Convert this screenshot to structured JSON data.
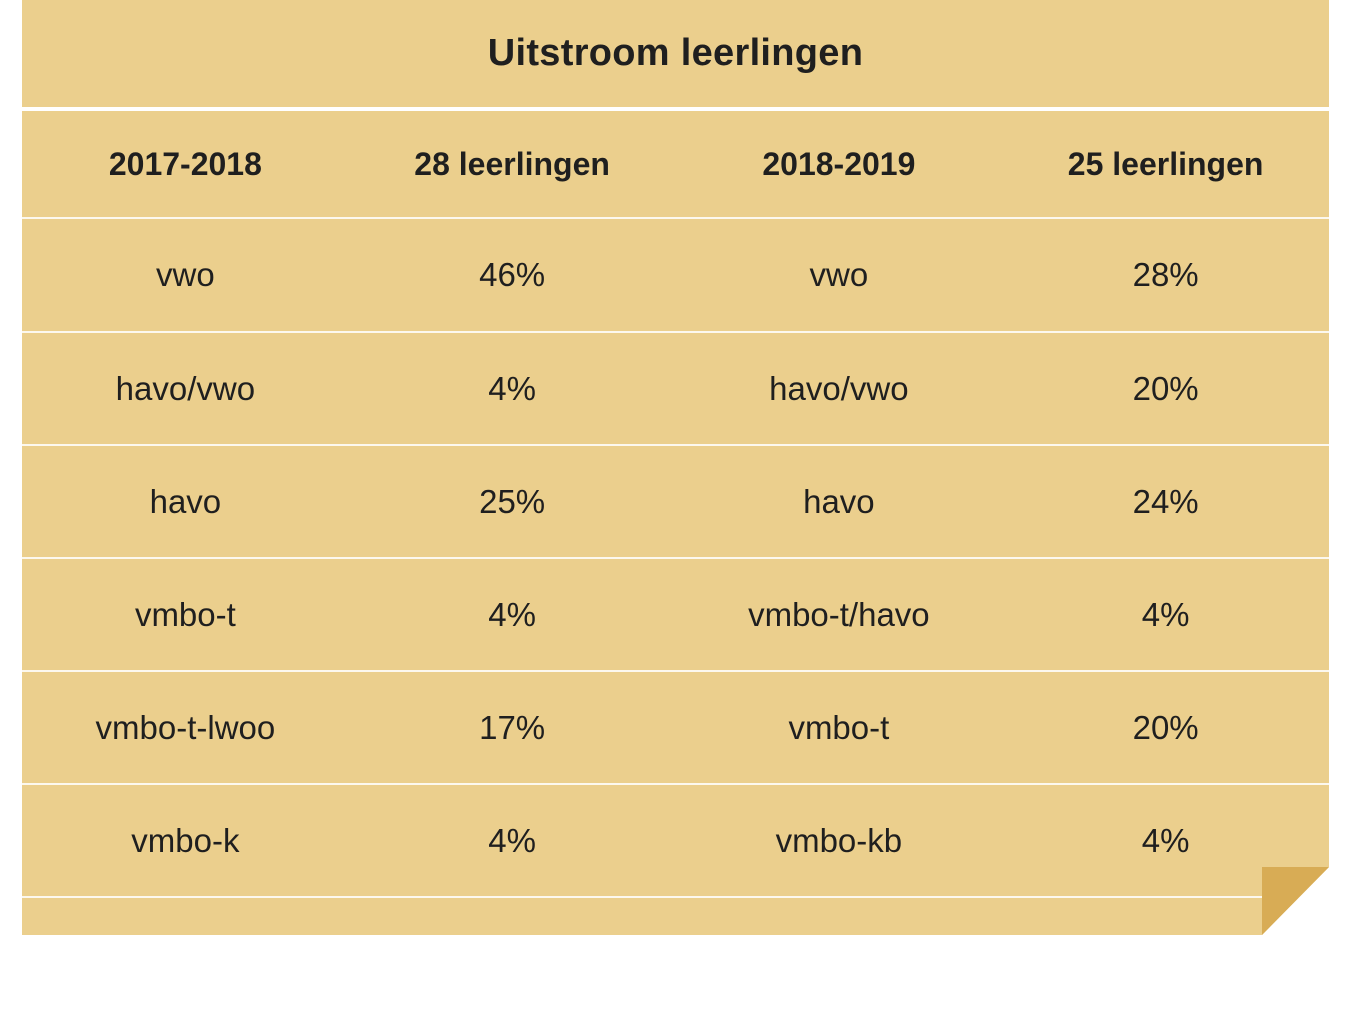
{
  "title": "Uitstroom leerlingen",
  "header": [
    "2017-2018",
    "28 leerlingen",
    "2018-2019",
    "25 leerlingen"
  ],
  "rows": [
    [
      "vwo",
      "46%",
      "vwo",
      "28%"
    ],
    [
      "havo/vwo",
      "4%",
      "havo/vwo",
      "20%"
    ],
    [
      "havo",
      "25%",
      "havo",
      "24%"
    ],
    [
      "vmbo-t",
      "4%",
      "vmbo-t/havo",
      "4%"
    ],
    [
      "vmbo-t-lwoo",
      "17%",
      "vmbo-t",
      "20%"
    ],
    [
      "vmbo-k",
      "4%",
      "vmbo-kb",
      "4%"
    ]
  ],
  "colors": {
    "card_background": "#ebcf8d",
    "fold": "#d8ac55",
    "separator": "#ffffff",
    "text": "#1f1f1f"
  }
}
